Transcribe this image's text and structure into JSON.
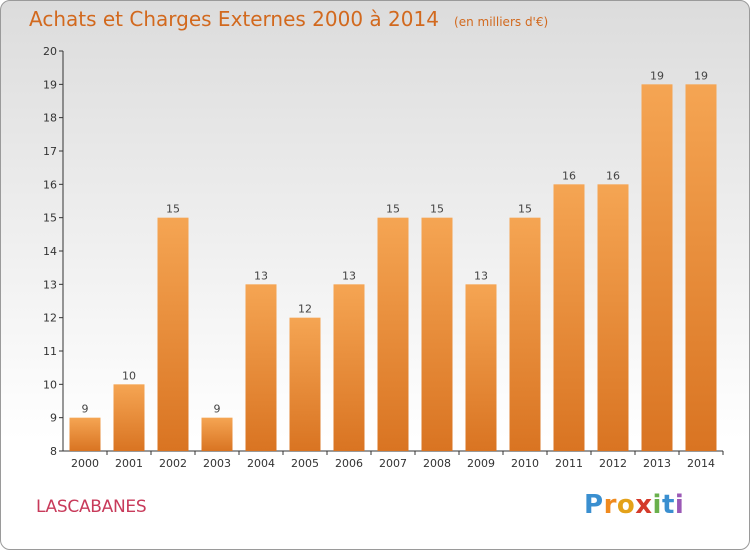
{
  "chart_data": {
    "type": "bar",
    "title": "Achats et Charges Externes 2000 à 2014",
    "subtitle": "(en milliers d'€)",
    "categories": [
      "2000",
      "2001",
      "2002",
      "2003",
      "2004",
      "2005",
      "2006",
      "2007",
      "2008",
      "2009",
      "2010",
      "2011",
      "2012",
      "2013",
      "2014"
    ],
    "values": [
      9,
      10,
      15,
      9,
      13,
      12,
      13,
      15,
      15,
      13,
      15,
      16,
      16,
      19,
      19
    ],
    "ylim": [
      8,
      20
    ],
    "yticks": [
      8,
      9,
      10,
      11,
      12,
      13,
      14,
      15,
      16,
      17,
      18,
      19,
      20
    ],
    "grid": false,
    "bar_color_top": "#f5a553",
    "bar_color_bottom": "#d97422"
  },
  "place": "LASCABANES",
  "logo": {
    "letters": [
      "P",
      "r",
      "o",
      "x",
      "i",
      "t",
      "i"
    ],
    "colors": [
      "#3a8fd0",
      "#f08a1e",
      "#e4a21a",
      "#d43a2a",
      "#6ab04c",
      "#3a8fd0",
      "#9b59b6"
    ]
  },
  "colors": {
    "title": "#d2691e",
    "place": "#c83a5a",
    "axis": "#333333"
  }
}
